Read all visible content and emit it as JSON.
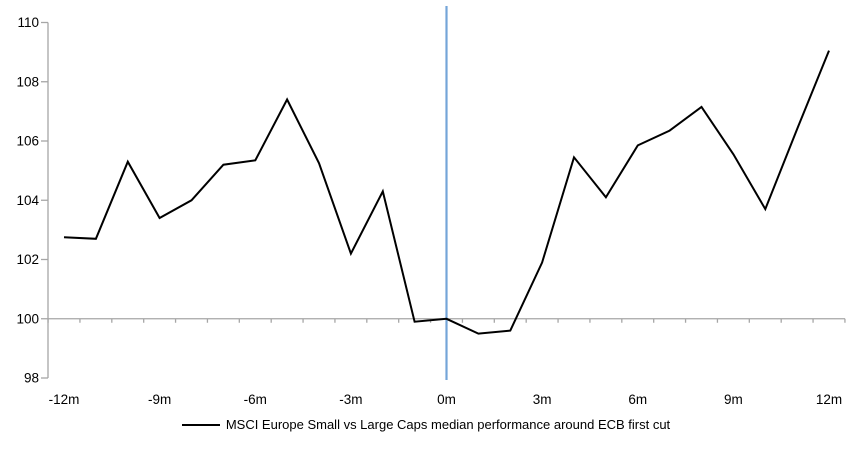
{
  "chart_data": {
    "type": "line",
    "title": "",
    "legend_position": "bottom",
    "grid": "off",
    "x_unit_suffix": "m",
    "x": [
      -12,
      -11,
      -10,
      -9,
      -8,
      -7,
      -6,
      -5,
      -4,
      -3,
      -2,
      -1,
      0,
      1,
      2,
      3,
      4,
      5,
      6,
      7,
      8,
      9,
      10,
      11,
      12
    ],
    "series": [
      {
        "name": "MSCI Europe Small vs Large Caps median performance around ECB first cut",
        "values": [
          102.75,
          102.7,
          105.3,
          103.4,
          104.0,
          105.2,
          105.35,
          107.4,
          105.25,
          102.2,
          104.3,
          99.9,
          100.0,
          99.5,
          99.6,
          101.9,
          105.45,
          104.1,
          105.85,
          106.35,
          107.15,
          105.55,
          103.7,
          106.4,
          109.05
        ]
      }
    ],
    "x_tick_positions": [
      -12,
      -9,
      -6,
      -3,
      0,
      3,
      6,
      9,
      12
    ],
    "x_tick_labels": [
      "-12m",
      "-9m",
      "-6m",
      "-3m",
      "0m",
      "3m",
      "6m",
      "9m",
      "12m"
    ],
    "y_ticks": [
      98,
      100,
      102,
      104,
      106,
      108,
      110
    ],
    "ylim": [
      98,
      110
    ],
    "baseline_value": 100,
    "event_line_x": 0,
    "colors": {
      "series": "#000000",
      "axis": "#a6a6a6",
      "event_line": "#74a5d8",
      "text": "#000000",
      "background": "#ffffff"
    }
  }
}
